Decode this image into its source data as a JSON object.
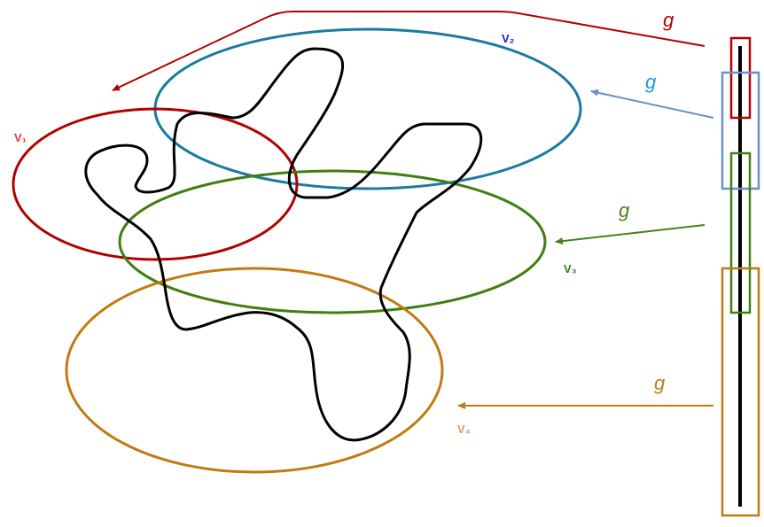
{
  "labels": {
    "v1": "V₁",
    "v2": "V₂",
    "v3": "V₃",
    "v4": "V₄",
    "g": "g"
  },
  "colors": {
    "v1": "#b30000",
    "v1_label": "#e23b3b",
    "v2": "#1a7aa0",
    "v2_label": "#1a1ad6",
    "v3": "#3f7e10",
    "v3_label": "#2e7d1e",
    "v4": "#c27a10",
    "v4_label": "#d4a050",
    "arrow_red": "#b30000",
    "arrow_blue": "#6b90c8",
    "arrow_blue_label": "#1a9ad6",
    "arrow_green": "#4a8018",
    "arrow_orange": "#c27a10",
    "curve": "#000000"
  }
}
